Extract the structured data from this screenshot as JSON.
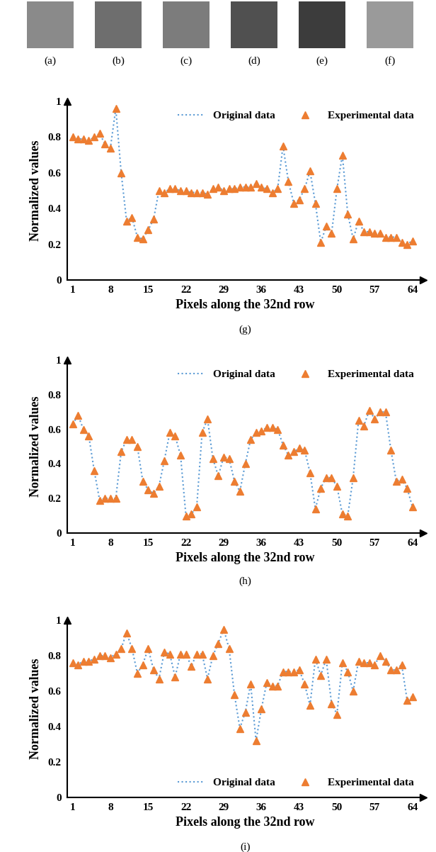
{
  "images": [
    "(a)",
    "(b)",
    "(c)",
    "(d)",
    "(e)",
    "(f)"
  ],
  "chart_data": [
    {
      "type": "line",
      "subtitle": "(g)",
      "x_label": "Pixels along the 32nd row",
      "y_label": "Normalized values",
      "x": [
        1,
        2,
        3,
        4,
        5,
        6,
        7,
        8,
        9,
        10,
        11,
        12,
        13,
        14,
        15,
        16,
        17,
        18,
        19,
        20,
        21,
        22,
        23,
        24,
        25,
        26,
        27,
        28,
        29,
        30,
        31,
        32,
        33,
        34,
        35,
        36,
        37,
        38,
        39,
        40,
        41,
        42,
        43,
        44,
        45,
        46,
        47,
        48,
        49,
        50,
        51,
        52,
        53,
        54,
        55,
        56,
        57,
        58,
        59,
        60,
        61,
        62,
        63,
        64
      ],
      "xlim": [
        0,
        66
      ],
      "xticks": [
        1,
        8,
        15,
        22,
        29,
        36,
        43,
        50,
        57,
        64
      ],
      "ylim": [
        0,
        1
      ],
      "yticks": [
        0,
        0.2,
        0.4,
        0.6,
        0.8,
        1
      ],
      "legend": "upper right",
      "series": [
        {
          "name": "Original data",
          "type": "line",
          "line_style": "dotted",
          "color": "#5B9BD5",
          "values": [
            0.8,
            0.79,
            0.79,
            0.78,
            0.8,
            0.82,
            0.76,
            0.74,
            0.96,
            0.6,
            0.33,
            0.35,
            0.24,
            0.23,
            0.28,
            0.34,
            0.5,
            0.49,
            0.51,
            0.51,
            0.5,
            0.5,
            0.49,
            0.49,
            0.49,
            0.48,
            0.51,
            0.52,
            0.5,
            0.51,
            0.51,
            0.52,
            0.52,
            0.52,
            0.54,
            0.52,
            0.51,
            0.49,
            0.51,
            0.75,
            0.55,
            0.43,
            0.45,
            0.51,
            0.61,
            0.43,
            0.21,
            0.3,
            0.26,
            0.51,
            0.7,
            0.37,
            0.23,
            0.33,
            0.27,
            0.27,
            0.26,
            0.26,
            0.24,
            0.24,
            0.24,
            0.21,
            0.2,
            0.22
          ]
        },
        {
          "name": "Experimental data",
          "type": "scatter",
          "marker": "triangle",
          "color": "#ED7D31",
          "values": [
            0.8,
            0.79,
            0.79,
            0.78,
            0.8,
            0.82,
            0.76,
            0.74,
            0.96,
            0.6,
            0.33,
            0.35,
            0.24,
            0.23,
            0.28,
            0.34,
            0.5,
            0.49,
            0.51,
            0.51,
            0.5,
            0.5,
            0.49,
            0.49,
            0.49,
            0.48,
            0.51,
            0.52,
            0.5,
            0.51,
            0.51,
            0.52,
            0.52,
            0.52,
            0.54,
            0.52,
            0.51,
            0.49,
            0.51,
            0.75,
            0.55,
            0.43,
            0.45,
            0.51,
            0.61,
            0.43,
            0.21,
            0.3,
            0.26,
            0.51,
            0.7,
            0.37,
            0.23,
            0.33,
            0.27,
            0.27,
            0.26,
            0.26,
            0.24,
            0.24,
            0.24,
            0.21,
            0.2,
            0.22
          ]
        }
      ]
    },
    {
      "type": "line",
      "subtitle": "(h)",
      "x_label": "Pixels along the 32nd row",
      "y_label": "Normalized values",
      "x": [
        1,
        2,
        3,
        4,
        5,
        6,
        7,
        8,
        9,
        10,
        11,
        12,
        13,
        14,
        15,
        16,
        17,
        18,
        19,
        20,
        21,
        22,
        23,
        24,
        25,
        26,
        27,
        28,
        29,
        30,
        31,
        32,
        33,
        34,
        35,
        36,
        37,
        38,
        39,
        40,
        41,
        42,
        43,
        44,
        45,
        46,
        47,
        48,
        49,
        50,
        51,
        52,
        53,
        54,
        55,
        56,
        57,
        58,
        59,
        60,
        61,
        62,
        63,
        64
      ],
      "xlim": [
        0,
        66
      ],
      "xticks": [
        1,
        8,
        15,
        22,
        29,
        36,
        43,
        50,
        57,
        64
      ],
      "ylim": [
        0,
        1
      ],
      "yticks": [
        0,
        0.2,
        0.4,
        0.6,
        0.8,
        1
      ],
      "legend": "upper right",
      "series": [
        {
          "name": "Original data",
          "type": "line",
          "line_style": "dotted",
          "color": "#5B9BD5",
          "values": [
            0.63,
            0.68,
            0.6,
            0.56,
            0.36,
            0.19,
            0.2,
            0.2,
            0.2,
            0.47,
            0.54,
            0.54,
            0.5,
            0.3,
            0.25,
            0.23,
            0.27,
            0.42,
            0.58,
            0.56,
            0.45,
            0.1,
            0.11,
            0.15,
            0.58,
            0.66,
            0.43,
            0.33,
            0.44,
            0.43,
            0.3,
            0.24,
            0.4,
            0.54,
            0.58,
            0.59,
            0.61,
            0.61,
            0.6,
            0.51,
            0.45,
            0.47,
            0.49,
            0.48,
            0.35,
            0.14,
            0.26,
            0.32,
            0.32,
            0.27,
            0.11,
            0.1,
            0.32,
            0.65,
            0.62,
            0.71,
            0.66,
            0.7,
            0.7,
            0.48,
            0.3,
            0.31,
            0.26,
            0.15
          ]
        },
        {
          "name": "Experimental data",
          "type": "scatter",
          "marker": "triangle",
          "color": "#ED7D31",
          "values": [
            0.63,
            0.68,
            0.6,
            0.56,
            0.36,
            0.19,
            0.2,
            0.2,
            0.2,
            0.47,
            0.54,
            0.54,
            0.5,
            0.3,
            0.25,
            0.23,
            0.27,
            0.42,
            0.58,
            0.56,
            0.45,
            0.1,
            0.11,
            0.15,
            0.58,
            0.66,
            0.43,
            0.33,
            0.44,
            0.43,
            0.3,
            0.24,
            0.4,
            0.54,
            0.58,
            0.59,
            0.61,
            0.61,
            0.6,
            0.51,
            0.45,
            0.47,
            0.49,
            0.48,
            0.35,
            0.14,
            0.26,
            0.32,
            0.32,
            0.27,
            0.11,
            0.1,
            0.32,
            0.65,
            0.62,
            0.71,
            0.66,
            0.7,
            0.7,
            0.48,
            0.3,
            0.31,
            0.26,
            0.15
          ]
        }
      ]
    },
    {
      "type": "line",
      "subtitle": "(i)",
      "x_label": "Pixels along the 32nd row",
      "y_label": "Normalized values",
      "x": [
        1,
        2,
        3,
        4,
        5,
        6,
        7,
        8,
        9,
        10,
        11,
        12,
        13,
        14,
        15,
        16,
        17,
        18,
        19,
        20,
        21,
        22,
        23,
        24,
        25,
        26,
        27,
        28,
        29,
        30,
        31,
        32,
        33,
        34,
        35,
        36,
        37,
        38,
        39,
        40,
        41,
        42,
        43,
        44,
        45,
        46,
        47,
        48,
        49,
        50,
        51,
        52,
        53,
        54,
        55,
        56,
        57,
        58,
        59,
        60,
        61,
        62,
        63,
        64
      ],
      "xlim": [
        0,
        66
      ],
      "xticks": [
        1,
        8,
        15,
        22,
        29,
        36,
        43,
        50,
        57,
        64
      ],
      "ylim": [
        0,
        1
      ],
      "yticks": [
        0,
        0.2,
        0.4,
        0.6,
        0.8,
        1
      ],
      "legend": "lower right",
      "series": [
        {
          "name": "Original data",
          "type": "line",
          "line_style": "dotted",
          "color": "#5B9BD5",
          "values": [
            0.76,
            0.75,
            0.77,
            0.77,
            0.78,
            0.8,
            0.8,
            0.79,
            0.81,
            0.84,
            0.93,
            0.84,
            0.7,
            0.75,
            0.84,
            0.72,
            0.67,
            0.82,
            0.81,
            0.68,
            0.81,
            0.81,
            0.74,
            0.81,
            0.81,
            0.67,
            0.8,
            0.87,
            0.95,
            0.84,
            0.58,
            0.39,
            0.48,
            0.64,
            0.32,
            0.5,
            0.65,
            0.63,
            0.63,
            0.71,
            0.71,
            0.71,
            0.72,
            0.64,
            0.52,
            0.78,
            0.69,
            0.78,
            0.53,
            0.47,
            0.76,
            0.71,
            0.6,
            0.77,
            0.76,
            0.76,
            0.75,
            0.8,
            0.77,
            0.72,
            0.72,
            0.75,
            0.55,
            0.57
          ]
        },
        {
          "name": "Experimental data",
          "type": "scatter",
          "marker": "triangle",
          "color": "#ED7D31",
          "values": [
            0.76,
            0.75,
            0.77,
            0.77,
            0.78,
            0.8,
            0.8,
            0.79,
            0.81,
            0.84,
            0.93,
            0.84,
            0.7,
            0.75,
            0.84,
            0.72,
            0.67,
            0.82,
            0.81,
            0.68,
            0.81,
            0.81,
            0.74,
            0.81,
            0.81,
            0.67,
            0.8,
            0.87,
            0.95,
            0.84,
            0.58,
            0.39,
            0.48,
            0.64,
            0.32,
            0.5,
            0.65,
            0.63,
            0.63,
            0.71,
            0.71,
            0.71,
            0.72,
            0.64,
            0.52,
            0.78,
            0.69,
            0.78,
            0.53,
            0.47,
            0.76,
            0.71,
            0.6,
            0.77,
            0.76,
            0.76,
            0.75,
            0.8,
            0.77,
            0.72,
            0.72,
            0.75,
            0.55,
            0.57
          ]
        }
      ]
    }
  ]
}
